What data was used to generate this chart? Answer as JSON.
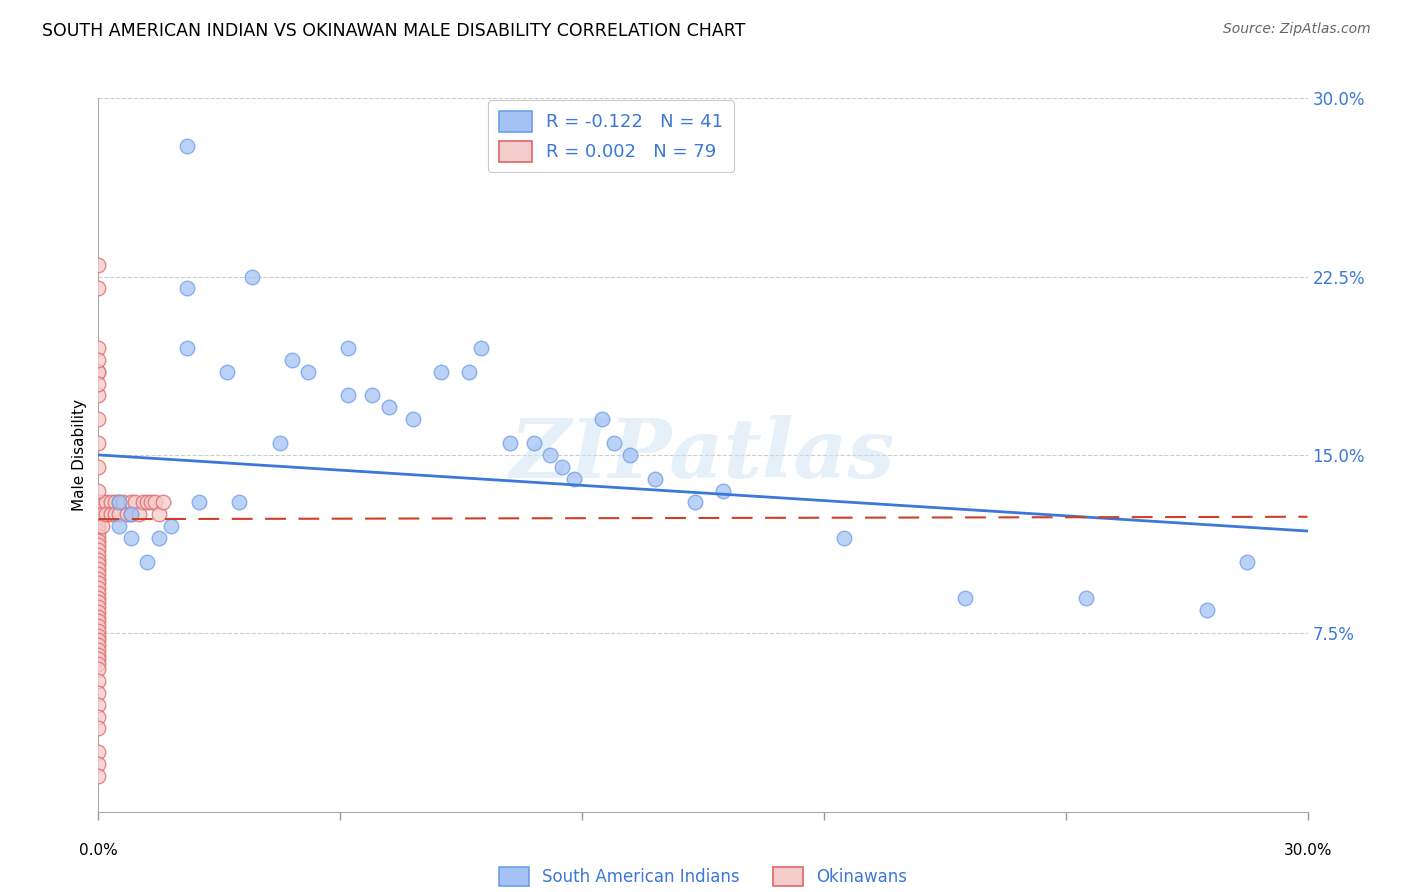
{
  "title": "SOUTH AMERICAN INDIAN VS OKINAWAN MALE DISABILITY CORRELATION CHART",
  "source": "Source: ZipAtlas.com",
  "ylabel": "Male Disability",
  "xlim": [
    0.0,
    0.3
  ],
  "ylim": [
    0.0,
    0.3
  ],
  "yticks": [
    0.075,
    0.15,
    0.225,
    0.3
  ],
  "ytick_labels": [
    "7.5%",
    "15.0%",
    "22.5%",
    "30.0%"
  ],
  "watermark": "ZIPatlas",
  "legend_r1": "R = -0.122",
  "legend_n1": "N = 41",
  "legend_r2": "R = 0.002",
  "legend_n2": "N = 79",
  "blue_fill": "#a4c2f4",
  "blue_edge": "#6d9eeb",
  "pink_fill": "#f4cccc",
  "pink_edge": "#e06666",
  "trendline_blue": "#3c78d8",
  "trendline_pink": "#cc4125",
  "blue_scatter_x": [
    0.022,
    0.038,
    0.022,
    0.022,
    0.032,
    0.048,
    0.052,
    0.062,
    0.068,
    0.072,
    0.078,
    0.085,
    0.092,
    0.095,
    0.102,
    0.108,
    0.112,
    0.115,
    0.118,
    0.125,
    0.128,
    0.132,
    0.138,
    0.148,
    0.155,
    0.062,
    0.045,
    0.035,
    0.025,
    0.018,
    0.015,
    0.012,
    0.008,
    0.008,
    0.005,
    0.005,
    0.185,
    0.215,
    0.245,
    0.275,
    0.285
  ],
  "blue_scatter_y": [
    0.28,
    0.225,
    0.22,
    0.195,
    0.185,
    0.19,
    0.185,
    0.195,
    0.175,
    0.17,
    0.165,
    0.185,
    0.185,
    0.195,
    0.155,
    0.155,
    0.15,
    0.145,
    0.14,
    0.165,
    0.155,
    0.15,
    0.14,
    0.13,
    0.135,
    0.175,
    0.155,
    0.13,
    0.13,
    0.12,
    0.115,
    0.105,
    0.125,
    0.115,
    0.13,
    0.12,
    0.115,
    0.09,
    0.09,
    0.085,
    0.105
  ],
  "pink_scatter_x": [
    0.0,
    0.0,
    0.0,
    0.0,
    0.0,
    0.0,
    0.0,
    0.0,
    0.0,
    0.0,
    0.0,
    0.0,
    0.0,
    0.0,
    0.0,
    0.0,
    0.0,
    0.0,
    0.0,
    0.0,
    0.0,
    0.0,
    0.0,
    0.0,
    0.0,
    0.0,
    0.0,
    0.0,
    0.0,
    0.0,
    0.0,
    0.0,
    0.0,
    0.0,
    0.0,
    0.0,
    0.0,
    0.0,
    0.0,
    0.0,
    0.0,
    0.0,
    0.0,
    0.001,
    0.001,
    0.001,
    0.002,
    0.002,
    0.003,
    0.003,
    0.004,
    0.004,
    0.005,
    0.005,
    0.006,
    0.007,
    0.008,
    0.008,
    0.009,
    0.01,
    0.011,
    0.012,
    0.013,
    0.014,
    0.015,
    0.016,
    0.0,
    0.0,
    0.0,
    0.0,
    0.0,
    0.0,
    0.0,
    0.0,
    0.0,
    0.0,
    0.0,
    0.0,
    0.0
  ],
  "pink_scatter_y": [
    0.13,
    0.128,
    0.126,
    0.124,
    0.122,
    0.12,
    0.118,
    0.116,
    0.114,
    0.112,
    0.11,
    0.108,
    0.106,
    0.104,
    0.102,
    0.1,
    0.098,
    0.096,
    0.094,
    0.092,
    0.09,
    0.088,
    0.086,
    0.084,
    0.082,
    0.08,
    0.078,
    0.076,
    0.074,
    0.072,
    0.07,
    0.068,
    0.066,
    0.064,
    0.062,
    0.06,
    0.055,
    0.05,
    0.045,
    0.04,
    0.035,
    0.025,
    0.02,
    0.13,
    0.125,
    0.12,
    0.13,
    0.125,
    0.13,
    0.125,
    0.13,
    0.125,
    0.13,
    0.125,
    0.13,
    0.125,
    0.13,
    0.125,
    0.13,
    0.125,
    0.13,
    0.13,
    0.13,
    0.13,
    0.125,
    0.13,
    0.195,
    0.185,
    0.175,
    0.165,
    0.155,
    0.145,
    0.135,
    0.185,
    0.23,
    0.22,
    0.19,
    0.18,
    0.015
  ],
  "blue_trend_x": [
    0.0,
    0.3
  ],
  "blue_trend_y": [
    0.15,
    0.118
  ],
  "pink_trend_x": [
    0.0,
    0.3
  ],
  "pink_trend_y": [
    0.123,
    0.124
  ]
}
